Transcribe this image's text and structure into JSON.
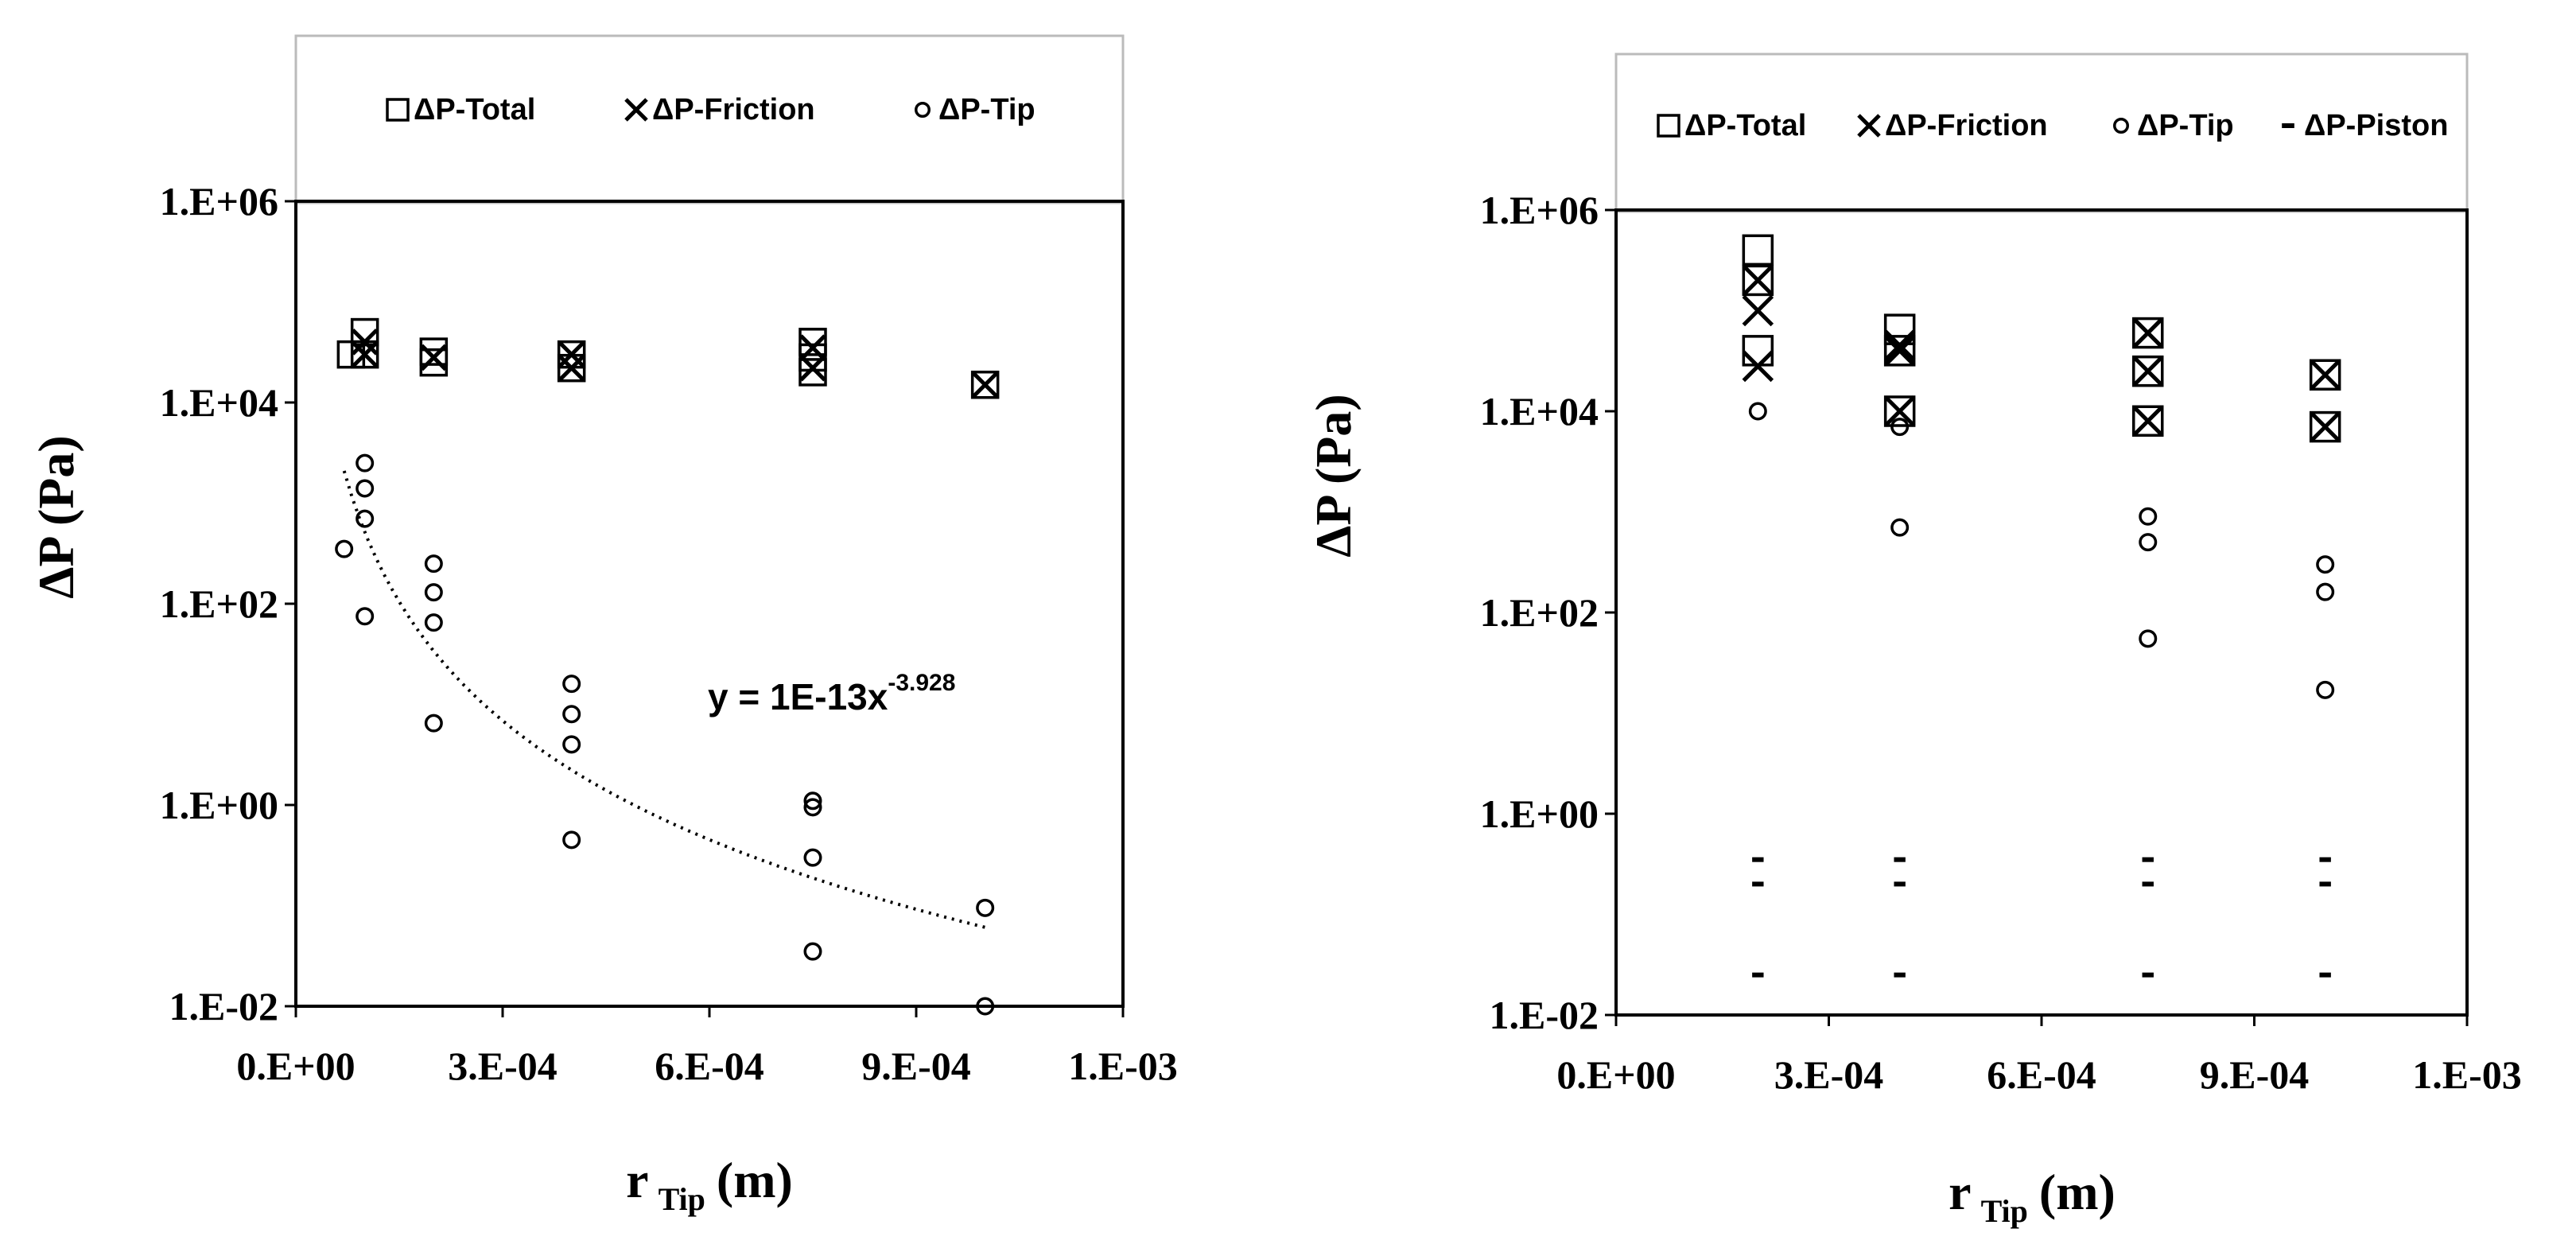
{
  "chart_data": [
    {
      "type": "scatter",
      "xlabel": "r",
      "xlabel_sub": "Tip",
      "xlabel_unit": "(m)",
      "ylabel": "ΔP  (Pa)",
      "x_ticks": [
        "0.E+00",
        "3.E-04",
        "6.E-04",
        "9.E-04",
        "1.E-03"
      ],
      "x_tick_values": [
        0,
        0.0003,
        0.0006,
        0.0009,
        0.0012
      ],
      "y_ticks": [
        "1.E+06",
        "1.E+04",
        "1.E+02",
        "1.E+00",
        "1.E-02"
      ],
      "y_tick_values": [
        1000000,
        10000,
        100,
        1,
        0.01
      ],
      "xlim": [
        0,
        0.0012
      ],
      "ylim": [
        0.01,
        1000000
      ],
      "yscale": "log",
      "legend_position": "top",
      "legend": [
        "ΔP-Total",
        "ΔP-Friction",
        "ΔP-Tip"
      ],
      "series": [
        {
          "name": "ΔP-Total",
          "marker": "square",
          "x": [
            8e-05,
            0.0001,
            0.0001,
            0.0002,
            0.0002,
            0.0004,
            0.0004,
            0.00075,
            0.00075,
            0.00075,
            0.001
          ],
          "y": [
            30000,
            50000,
            30000,
            32000,
            25000,
            30000,
            22000,
            40000,
            28000,
            20000,
            15000
          ]
        },
        {
          "name": "ΔP-Friction",
          "marker": "x",
          "x": [
            0.0001,
            0.0001,
            0.0002,
            0.0004,
            0.0004,
            0.00075,
            0.00075,
            0.001
          ],
          "y": [
            40000,
            30000,
            28000,
            30000,
            22000,
            35000,
            22000,
            15000
          ]
        },
        {
          "name": "ΔP-Tip",
          "marker": "circle",
          "x": [
            7e-05,
            0.0001,
            0.0001,
            0.0001,
            0.0001,
            0.0002,
            0.0002,
            0.0002,
            0.0002,
            0.0004,
            0.0004,
            0.0004,
            0.0004,
            0.00075,
            0.00075,
            0.00075,
            0.00075,
            0.001,
            0.001
          ],
          "y": [
            350,
            2500,
            1400,
            700,
            75,
            250,
            130,
            65,
            6.5,
            16,
            8,
            4,
            0.45,
            1.1,
            0.95,
            0.3,
            0.035,
            0.095,
            0.01
          ]
        }
      ],
      "trendline": {
        "type": "power",
        "coef": 1e-13,
        "exp": -3.928,
        "x_range": [
          7e-05,
          0.001
        ],
        "style": "dotted"
      },
      "annotations": [
        {
          "text": "y = 1E-13x",
          "superscript": "-3.928"
        }
      ]
    },
    {
      "type": "scatter",
      "xlabel": "r",
      "xlabel_sub": "Tip",
      "xlabel_unit": "(m)",
      "ylabel": "ΔP  (Pa)",
      "x_ticks": [
        "0.E+00",
        "3.E-04",
        "6.E-04",
        "9.E-04",
        "1.E-03"
      ],
      "x_tick_values": [
        0,
        0.0003,
        0.0006,
        0.0009,
        0.0012
      ],
      "y_ticks": [
        "1.E+06",
        "1.E+04",
        "1.E+02",
        "1.E+00",
        "1.E-02"
      ],
      "y_tick_values": [
        1000000,
        10000,
        100,
        1,
        0.01
      ],
      "xlim": [
        0,
        0.0012
      ],
      "ylim": [
        0.01,
        1000000
      ],
      "yscale": "log",
      "legend_position": "top",
      "legend": [
        "ΔP-Total",
        "ΔP-Friction",
        "ΔP-Tip",
        "ΔP-Piston"
      ],
      "series": [
        {
          "name": "ΔP-Total",
          "marker": "square",
          "x": [
            0.0002,
            0.0002,
            0.0002,
            0.0004,
            0.0004,
            0.0004,
            0.00075,
            0.00075,
            0.00075,
            0.001,
            0.001
          ],
          "y": [
            400000,
            200000,
            40000,
            65000,
            40000,
            10000,
            60000,
            25000,
            8000,
            23000,
            7000
          ]
        },
        {
          "name": "ΔP-Friction",
          "marker": "x",
          "x": [
            0.0002,
            0.0002,
            0.0002,
            0.0004,
            0.0004,
            0.0004,
            0.00075,
            0.00075,
            0.00075,
            0.001,
            0.001
          ],
          "y": [
            200000,
            100000,
            28000,
            45000,
            40000,
            10000,
            60000,
            25000,
            8000,
            23000,
            7000
          ]
        },
        {
          "name": "ΔP-Tip",
          "marker": "circle",
          "x": [
            0.0002,
            0.0004,
            0.0004,
            0.00075,
            0.00075,
            0.00075,
            0.001,
            0.001,
            0.001
          ],
          "y": [
            10000,
            7000,
            700,
            900,
            500,
            55,
            300,
            160,
            17
          ]
        },
        {
          "name": "ΔP-Piston",
          "marker": "dash",
          "x": [
            0.0002,
            0.0002,
            0.0002,
            0.0004,
            0.0004,
            0.0004,
            0.00075,
            0.00075,
            0.00075,
            0.001,
            0.001,
            0.001
          ],
          "y": [
            0.35,
            0.2,
            0.025,
            0.35,
            0.2,
            0.025,
            0.35,
            0.2,
            0.025,
            0.35,
            0.2,
            0.025
          ]
        }
      ]
    }
  ]
}
